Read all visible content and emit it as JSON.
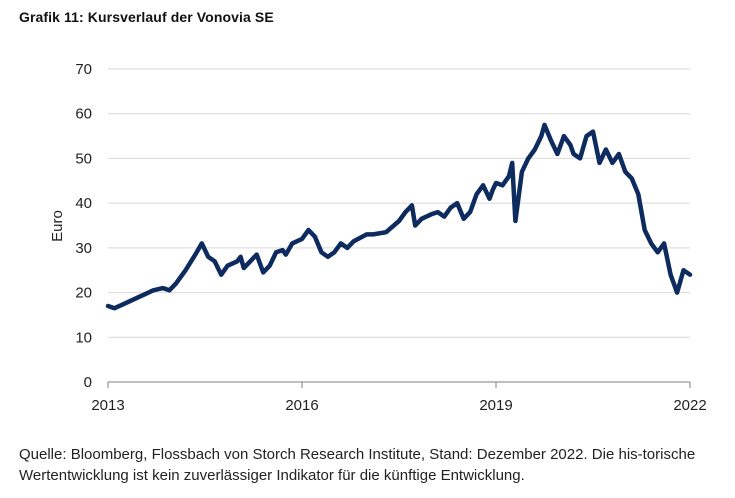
{
  "title": "Grafik 11: Kursverlauf der Vonovia SE",
  "source": "Quelle: Bloomberg, Flossbach von Storch Research Institute, Stand: Dezember 2022. Die his-torische Wertentwicklung ist kein zuverlässiger Indikator für die künftige Entwicklung.",
  "colors": {
    "line": "#0d2b5e",
    "grid": "#d9d9d9",
    "axis": "#7f7f7f"
  },
  "chart_data": {
    "type": "line",
    "ylabel": "Euro",
    "xlabel": "",
    "ylim": [
      0,
      70
    ],
    "xlim": [
      2013,
      2022
    ],
    "yticks": [
      0,
      10,
      20,
      30,
      40,
      50,
      60,
      70
    ],
    "xticks": [
      "2013",
      "2016",
      "2019",
      "2022"
    ],
    "grid": "horizontal",
    "series": [
      {
        "x": [
          2013.0,
          2013.1,
          2013.25,
          2013.4,
          2013.55,
          2013.7,
          2013.85,
          2013.95,
          2014.05,
          2014.2,
          2014.35,
          2014.45,
          2014.55,
          2014.65,
          2014.75,
          2014.85,
          2015.0,
          2015.05,
          2015.1,
          2015.2,
          2015.3,
          2015.4,
          2015.5,
          2015.6,
          2015.7,
          2015.75,
          2015.85,
          2016.0,
          2016.1,
          2016.2,
          2016.3,
          2016.4,
          2016.5,
          2016.6,
          2016.7,
          2016.8,
          2017.0,
          2017.1,
          2017.3,
          2017.5,
          2017.6,
          2017.7,
          2017.75,
          2017.85,
          2018.0,
          2018.1,
          2018.2,
          2018.3,
          2018.4,
          2018.5,
          2018.6,
          2018.7,
          2018.8,
          2018.9,
          2018.95,
          2019.0,
          2019.1,
          2019.2,
          2019.25,
          2019.3,
          2019.4,
          2019.5,
          2019.6,
          2019.7,
          2019.75,
          2019.85,
          2019.95,
          2020.05,
          2020.15,
          2020.2,
          2020.3,
          2020.4,
          2020.5,
          2020.6,
          2020.7,
          2020.8,
          2020.9,
          2021.0,
          2021.1,
          2021.2,
          2021.3,
          2021.4,
          2021.5,
          2021.6,
          2021.7,
          2021.8,
          2021.9,
          2022.0
        ],
        "values": [
          17,
          16.5,
          17.5,
          18.5,
          19.5,
          20.5,
          21,
          20.5,
          22,
          25,
          28.5,
          31,
          28,
          27,
          24,
          26,
          27,
          28,
          25.5,
          27,
          28.5,
          24.5,
          26,
          29,
          29.5,
          28.5,
          31,
          32,
          34,
          32.5,
          29,
          28,
          29,
          31,
          30,
          31.5,
          33,
          33,
          33.5,
          36,
          38,
          39.5,
          35,
          36.5,
          37.5,
          38,
          37,
          39,
          40,
          36.5,
          38,
          42,
          44,
          41,
          43,
          44.5,
          44,
          46,
          49,
          36,
          47,
          50,
          52,
          55,
          57.5,
          54,
          51,
          55,
          53,
          51,
          50,
          55,
          56,
          49,
          52,
          49,
          51,
          47,
          45.5,
          42,
          34,
          31,
          29,
          31,
          24,
          20,
          25,
          24
        ]
      }
    ]
  }
}
